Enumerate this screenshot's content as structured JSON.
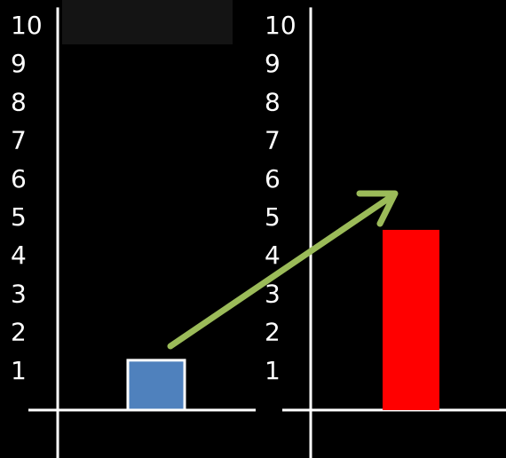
{
  "chart_data": [
    {
      "type": "bar",
      "categories": [
        null
      ],
      "values": [
        1.3
      ],
      "color": "#4f81bd",
      "ylim": [
        0,
        10.5
      ],
      "yticks": [
        1,
        2,
        3,
        4,
        5,
        6,
        7,
        8,
        9,
        10
      ],
      "grid": false
    },
    {
      "type": "bar",
      "categories": [
        null
      ],
      "values": [
        4.7
      ],
      "color": "#ff0000",
      "ylim": [
        0,
        10.5
      ],
      "yticks": [
        1,
        2,
        3,
        4,
        5,
        6,
        7,
        8,
        9,
        10
      ],
      "grid": false
    }
  ]
}
